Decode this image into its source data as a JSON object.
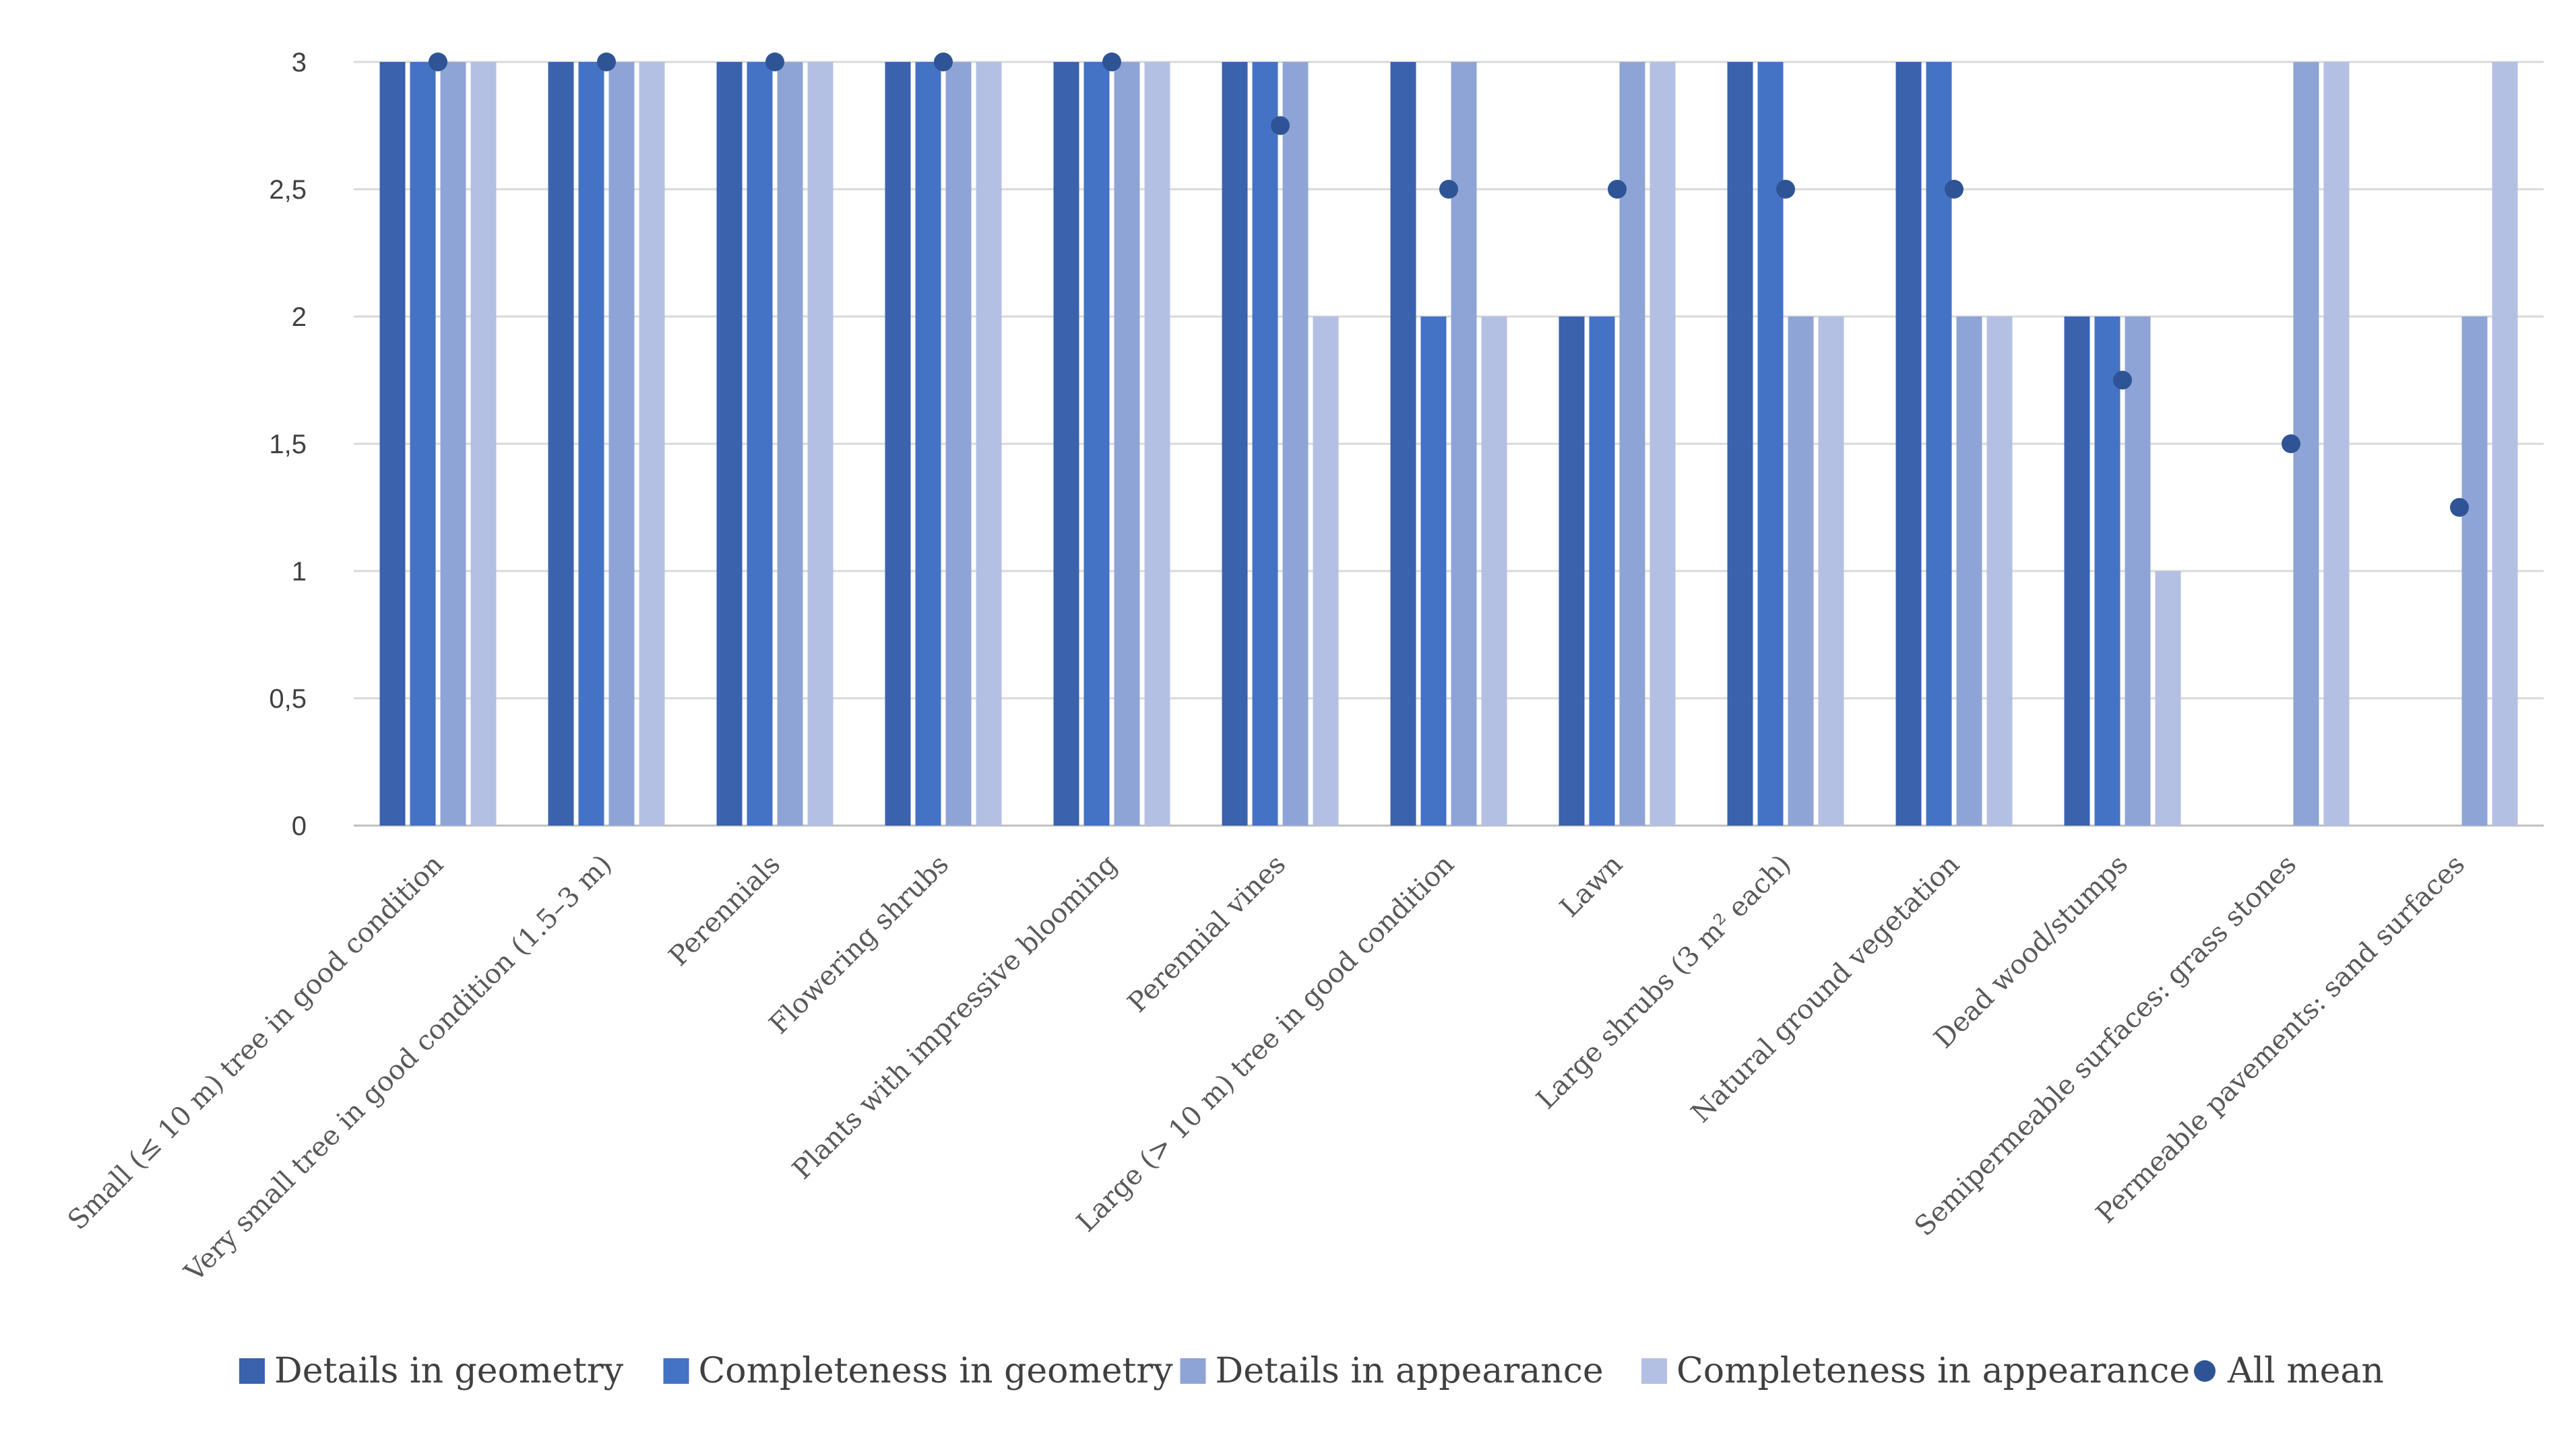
{
  "chart_data": {
    "type": "bar",
    "title": "",
    "xlabel": "",
    "ylabel": "",
    "ylim": [
      0,
      3
    ],
    "yticks": [
      "0",
      "0,5",
      "1",
      "1,5",
      "2",
      "2,5",
      "3"
    ],
    "ytick_values": [
      0,
      0.5,
      1,
      1.5,
      2,
      2.5,
      3
    ],
    "grid": true,
    "legend_position": "bottom",
    "categories": [
      "Small (≤ 10 m) tree in good condition",
      "Very small tree in good condition (1.5–3 m)",
      "Perennials",
      "Flowering shrubs",
      "Plants with impressive blooming",
      "Perennial vines",
      "Large (> 10 m) tree in good condition",
      "Lawn",
      "Large shrubs (3 m² each)",
      "Natural ground vegetation",
      "Dead wood/stumps",
      "Semipermeable surfaces: grass stones",
      "Permeable pavements: sand surfaces"
    ],
    "series": [
      {
        "name": "Details in geometry",
        "color": "#3a62ad",
        "values": [
          3,
          3,
          3,
          3,
          3,
          3,
          3,
          2,
          3,
          3,
          2,
          0,
          0
        ]
      },
      {
        "name": "Completeness in geometry",
        "color": "#4472c4",
        "values": [
          3,
          3,
          3,
          3,
          3,
          3,
          2,
          2,
          3,
          3,
          2,
          0,
          0
        ]
      },
      {
        "name": "Details in appearance",
        "color": "#8fa4d6",
        "values": [
          3,
          3,
          3,
          3,
          3,
          3,
          3,
          3,
          2,
          2,
          2,
          3,
          2
        ]
      },
      {
        "name": "Completeness in appearance",
        "color": "#b4c0e3",
        "values": [
          3,
          3,
          3,
          3,
          3,
          2,
          2,
          3,
          2,
          2,
          1,
          3,
          3
        ]
      }
    ],
    "mean_series": {
      "name": "All mean",
      "color": "#2e5496",
      "values": [
        3,
        3,
        3,
        3,
        3,
        2.75,
        2.5,
        2.5,
        2.5,
        2.5,
        1.75,
        1.5,
        1.25
      ]
    }
  }
}
